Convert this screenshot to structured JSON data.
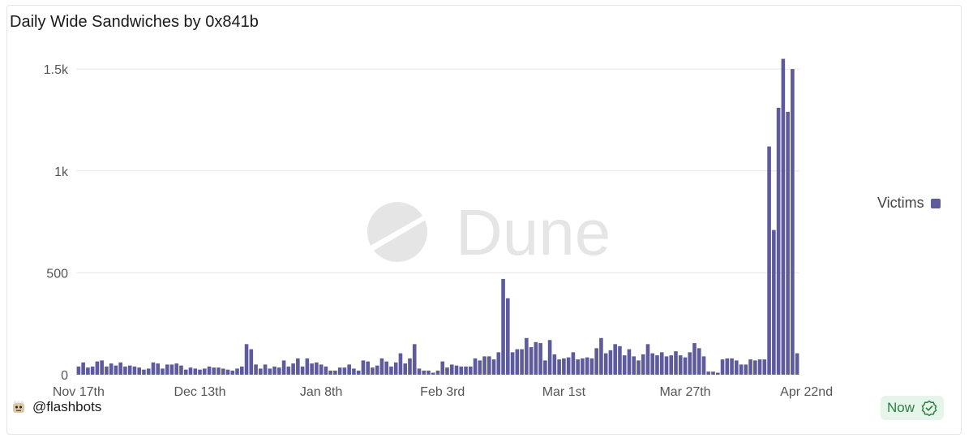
{
  "header": {
    "title": "Daily Wide Sandwiches by 0x841b"
  },
  "watermark": {
    "text": "Dune"
  },
  "legend": {
    "label": "Victims",
    "color": "#5e5b9c"
  },
  "footer": {
    "handle": "@flashbots",
    "status": "Now"
  },
  "chart_data": {
    "type": "bar",
    "title": "Daily Wide Sandwiches by 0x841b",
    "xlabel": "",
    "ylabel": "",
    "ylim": [
      0,
      1600
    ],
    "yticks": [
      0,
      500,
      1000,
      1500
    ],
    "ytick_labels": [
      "0",
      "500",
      "1k",
      "1.5k"
    ],
    "xtick_labels": [
      {
        "index": 0,
        "label": "Nov 17th"
      },
      {
        "index": 26,
        "label": "Dec 13th"
      },
      {
        "index": 52,
        "label": "Jan 8th"
      },
      {
        "index": 78,
        "label": "Feb 3rd"
      },
      {
        "index": 104,
        "label": "Mar 1st"
      },
      {
        "index": 130,
        "label": "Mar 27th"
      },
      {
        "index": 156,
        "label": "Apr 22nd"
      }
    ],
    "grid": true,
    "legend_position": "right",
    "series": [
      {
        "name": "Victims",
        "color": "#5e5b9c",
        "values": [
          40,
          60,
          35,
          40,
          65,
          70,
          40,
          55,
          45,
          60,
          40,
          45,
          40,
          35,
          25,
          30,
          60,
          55,
          30,
          50,
          50,
          55,
          45,
          25,
          35,
          30,
          25,
          30,
          40,
          35,
          35,
          30,
          25,
          20,
          30,
          40,
          150,
          125,
          50,
          30,
          50,
          30,
          40,
          35,
          70,
          40,
          55,
          80,
          40,
          80,
          55,
          60,
          50,
          40,
          20,
          20,
          35,
          35,
          50,
          30,
          20,
          70,
          65,
          35,
          45,
          80,
          65,
          40,
          60,
          105,
          55,
          80,
          150,
          30,
          20,
          20,
          10,
          20,
          65,
          35,
          50,
          45,
          40,
          40,
          40,
          80,
          70,
          90,
          90,
          75,
          110,
          470,
          375,
          110,
          125,
          125,
          180,
          135,
          160,
          155,
          70,
          170,
          100,
          75,
          80,
          85,
          110,
          75,
          80,
          85,
          80,
          130,
          180,
          105,
          120,
          150,
          140,
          95,
          125,
          90,
          70,
          100,
          150,
          105,
          95,
          110,
          90,
          95,
          115,
          95,
          85,
          110,
          155,
          130,
          90,
          15,
          15,
          10,
          75,
          80,
          80,
          70,
          50,
          50,
          75,
          70,
          75,
          75,
          1120,
          710,
          1310,
          1550,
          1290,
          1500,
          105
        ]
      }
    ]
  }
}
